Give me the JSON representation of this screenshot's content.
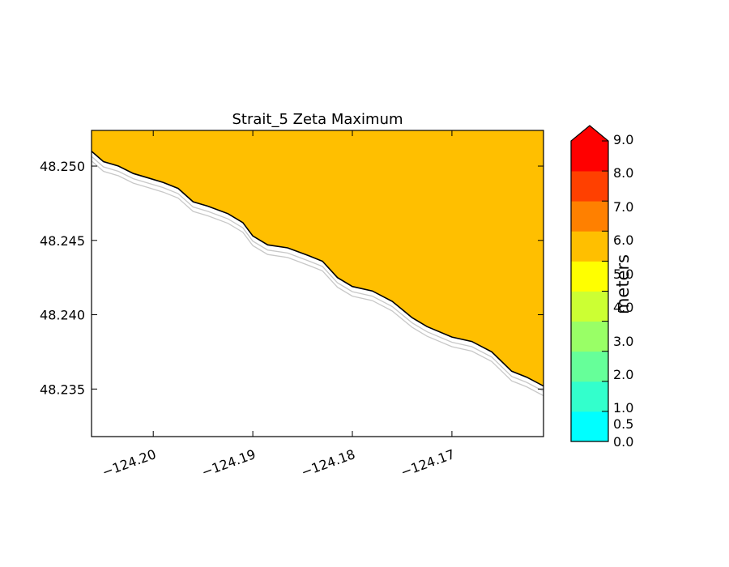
{
  "chart_data": {
    "type": "contourf",
    "title": "Strait_5 Zeta Maximum",
    "xlabel": "",
    "ylabel": "",
    "xlim": [
      -124.2062,
      -124.1608
    ],
    "ylim": [
      48.2318,
      48.2524
    ],
    "xticks": [
      -124.2,
      -124.19,
      -124.18,
      -124.17
    ],
    "xtick_labels": [
      "−124.20",
      "−124.19",
      "−124.18",
      "−124.17"
    ],
    "yticks": [
      48.25,
      48.245,
      48.24,
      48.235
    ],
    "ytick_labels": [
      "48.250",
      "48.245",
      "48.240",
      "48.235"
    ],
    "grid": false,
    "colorbar": {
      "label": "meters",
      "extend": "max",
      "levels": [
        0.0,
        0.5,
        1.0,
        2.0,
        3.0,
        4.0,
        5.0,
        6.0,
        7.0,
        8.0,
        9.0
      ],
      "tick_labels": [
        "0.0",
        "0.5",
        "1.0",
        "2.0",
        "3.0",
        "4.0",
        "5.0",
        "6.0",
        "7.0",
        "8.0",
        "9.0"
      ],
      "colors": [
        "#00ffff",
        "#33ffcc",
        "#66ff99",
        "#99ff66",
        "#ccff33",
        "#ffff00",
        "#ffbf00",
        "#ff8000",
        "#ff4000",
        "#ff0000"
      ],
      "extend_color": "#ff0000"
    },
    "field": {
      "dominant_range": [
        5.0,
        6.0
      ],
      "dominant_color": "#ffbf00"
    },
    "coastline": [
      [
        -124.2062,
        48.251
      ],
      [
        -124.205,
        48.2503
      ],
      [
        -124.2035,
        48.25
      ],
      [
        -124.202,
        48.2495
      ],
      [
        -124.2005,
        48.2492
      ],
      [
        -124.199,
        48.2489
      ],
      [
        -124.1975,
        48.2485
      ],
      [
        -124.196,
        48.2476
      ],
      [
        -124.1945,
        48.2473
      ],
      [
        -124.1925,
        48.2468
      ],
      [
        -124.191,
        48.2462
      ],
      [
        -124.19,
        48.2453
      ],
      [
        -124.1885,
        48.2447
      ],
      [
        -124.1865,
        48.2445
      ],
      [
        -124.1845,
        48.244
      ],
      [
        -124.183,
        48.2436
      ],
      [
        -124.1815,
        48.2425
      ],
      [
        -124.18,
        48.2419
      ],
      [
        -124.178,
        48.2416
      ],
      [
        -124.176,
        48.2409
      ],
      [
        -124.174,
        48.2398
      ],
      [
        -124.1725,
        48.2392
      ],
      [
        -124.17,
        48.2385
      ],
      [
        -124.168,
        48.2382
      ],
      [
        -124.166,
        48.2375
      ],
      [
        -124.164,
        48.2362
      ],
      [
        -124.1625,
        48.2358
      ],
      [
        -124.1608,
        48.2352
      ]
    ],
    "coastline_offsets": [
      -0.00035,
      -0.00065
    ]
  }
}
